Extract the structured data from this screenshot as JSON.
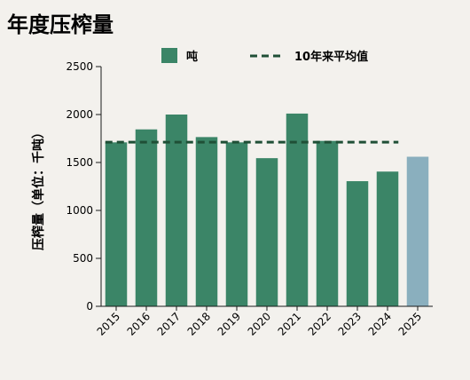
{
  "chart_data": {
    "type": "bar",
    "title": "年度压榨量",
    "xlabel": "",
    "ylabel": "压榨量（单位：千吨）",
    "categories": [
      "2015",
      "2016",
      "2017",
      "2018",
      "2019",
      "2020",
      "2021",
      "2022",
      "2023",
      "2024",
      "2025"
    ],
    "series": [
      {
        "name": "吨",
        "values": [
          1710,
          1845,
          2000,
          1765,
          1710,
          1545,
          2010,
          1725,
          1305,
          1405,
          1560
        ]
      }
    ],
    "reference_line": {
      "name": "10年来平均值",
      "value": 1712,
      "style": "dashed"
    },
    "ylim": [
      0,
      2500
    ],
    "yticks": [
      0,
      500,
      1000,
      1500,
      2000,
      2500
    ],
    "grid": false,
    "legend": "top",
    "highlight": {
      "category": "2025",
      "color": "#8aafbe"
    },
    "colors": {
      "bar": "#3b8567",
      "average_line": "#1f4f36",
      "background": "#f3f1ed"
    }
  }
}
